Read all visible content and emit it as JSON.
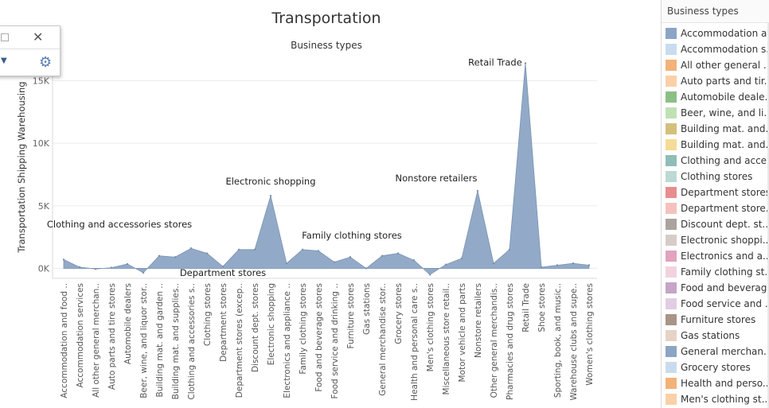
{
  "chart_data": {
    "type": "area",
    "title": "Transportation",
    "subtitle": "Business types",
    "xlabel": "",
    "ylabel": "Transportation Shipping Warehousing",
    "ylim": [
      -800,
      17000
    ],
    "y_ticks": [
      0,
      5000,
      10000,
      15000
    ],
    "y_tick_labels": [
      "0K",
      "5K",
      "10K",
      "15K"
    ],
    "grid": true,
    "categories": [
      "Accommodation and food ..",
      "Accommodation services",
      "All other general merchan..",
      "Auto parts and tire stores",
      "Automobile dealers",
      "Beer, wine, and liquor stor..",
      "Building mat. and garden ..",
      "Building mat. and supplies..",
      "Clothing and accessories s..",
      "Clothing stores",
      "Department stores",
      "Department stores (excep..",
      "Discount dept. stores",
      "Electronic shopping",
      "Electronics and appliance ..",
      "Family clothing stores",
      "Food and beverage stores",
      "Food service and drinking ..",
      "Furniture stores",
      "Gas stations",
      "General merchandise stor..",
      "Grocery stores",
      "Health and personal care s..",
      "Men's clothing stores",
      "Miscellaneous store retail..",
      "Motor vehicle and parts",
      "Nonstore retailers",
      "Other general merchandis..",
      "Pharmacies and drug stores",
      "Retail Trade",
      "Shoe stores",
      "Sporting, book, and music..",
      "Warehouse clubs and supe..",
      "Women's clothing stores"
    ],
    "series": [
      {
        "values": [
          700,
          100,
          -50,
          50,
          350,
          -350,
          1000,
          900,
          1600,
          1200,
          150,
          1500,
          1500,
          5800,
          400,
          1500,
          1400,
          500,
          900,
          0,
          1000,
          1200,
          650,
          -500,
          300,
          800,
          6200,
          400,
          1500,
          16400,
          100,
          250,
          400,
          250
        ],
        "color": "#8ca5c4"
      }
    ],
    "annotations": [
      {
        "text": "Clothing and accessories stores",
        "category": "Clothing and accessories s.."
      },
      {
        "text": "Department stores",
        "category": "Department stores"
      },
      {
        "text": "Electronic shopping",
        "category": "Electronic shopping"
      },
      {
        "text": "Family clothing stores",
        "category": "Family clothing stores"
      },
      {
        "text": "Nonstore retailers",
        "category": "Nonstore retailers"
      },
      {
        "text": "Retail Trade",
        "category": "Retail Trade"
      }
    ]
  },
  "legend": {
    "title": "Business types",
    "items": [
      {
        "label": "Accommodation a..",
        "color": "#8ca5c4"
      },
      {
        "label": "Accommodation s..",
        "color": "#c9dcef"
      },
      {
        "label": "All other general ..",
        "color": "#f3b27a"
      },
      {
        "label": "Auto parts and tir..",
        "color": "#fbd0a8"
      },
      {
        "label": "Automobile deale..",
        "color": "#8cbf87"
      },
      {
        "label": "Beer, wine, and li..",
        "color": "#bfe1b4"
      },
      {
        "label": "Building mat. and..",
        "color": "#d3c07c"
      },
      {
        "label": "Building mat. and..",
        "color": "#f5dc97"
      },
      {
        "label": "Clothing and acce..",
        "color": "#8fbdb8"
      },
      {
        "label": "Clothing stores",
        "color": "#bcd9d4"
      },
      {
        "label": "Department stores",
        "color": "#e88d8d"
      },
      {
        "label": "Department store..",
        "color": "#f6c1bd"
      },
      {
        "label": "Discount dept. st..",
        "color": "#aaa39f"
      },
      {
        "label": "Electronic shoppi..",
        "color": "#d6cdc8"
      },
      {
        "label": "Electronics and a..",
        "color": "#e1a3bd"
      },
      {
        "label": "Family clothing st..",
        "color": "#f3d2df"
      },
      {
        "label": "Food and beverag..",
        "color": "#c6a5c7"
      },
      {
        "label": "Food service and ..",
        "color": "#e2cde3"
      },
      {
        "label": "Furniture stores",
        "color": "#a99486"
      },
      {
        "label": "Gas stations",
        "color": "#e6d2c6"
      },
      {
        "label": "General merchan..",
        "color": "#8ca5c4"
      },
      {
        "label": "Grocery stores",
        "color": "#c9dcef"
      },
      {
        "label": "Health and perso..",
        "color": "#f3b27a"
      },
      {
        "label": "Men's clothing st..",
        "color": "#fbd0a8"
      }
    ]
  }
}
